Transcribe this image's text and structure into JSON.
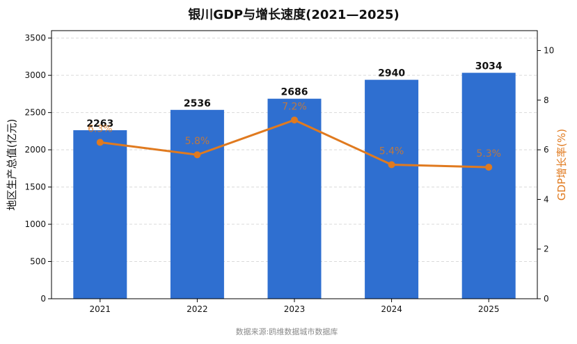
{
  "chart_data": {
    "type": "bar",
    "title": "银川GDP与增长速度(2021—2025)",
    "categories": [
      "2021",
      "2022",
      "2023",
      "2024",
      "2025"
    ],
    "series": [
      {
        "name": "",
        "type": "bar",
        "axis": "left",
        "values": [
          2263,
          2536,
          2686,
          2940,
          3034
        ],
        "labels": [
          "2263",
          "2536",
          "2686",
          "2940",
          "3034"
        ]
      },
      {
        "name": "",
        "type": "line",
        "axis": "right",
        "values": [
          6.3,
          5.8,
          7.2,
          5.4,
          5.3
        ],
        "labels": [
          "6.3%",
          "5.8%",
          "7.2%",
          "5.4%",
          "5.3%"
        ]
      }
    ],
    "ylabel": "地区生产总值(亿元)",
    "ylabel_right": "GDP增长率(%)",
    "ylim": [
      0,
      3600
    ],
    "ylim_right": [
      0,
      10.8
    ],
    "yticks": [
      0,
      500,
      1000,
      1500,
      2000,
      2500,
      3000,
      3500
    ],
    "yticks_right": [
      0,
      2,
      4,
      6,
      8,
      10
    ],
    "grid": true,
    "colors": {
      "bar": "#2f6fd0",
      "line": "#e07a1f"
    },
    "source": "数据来源:鸥维数据城市数据库"
  }
}
